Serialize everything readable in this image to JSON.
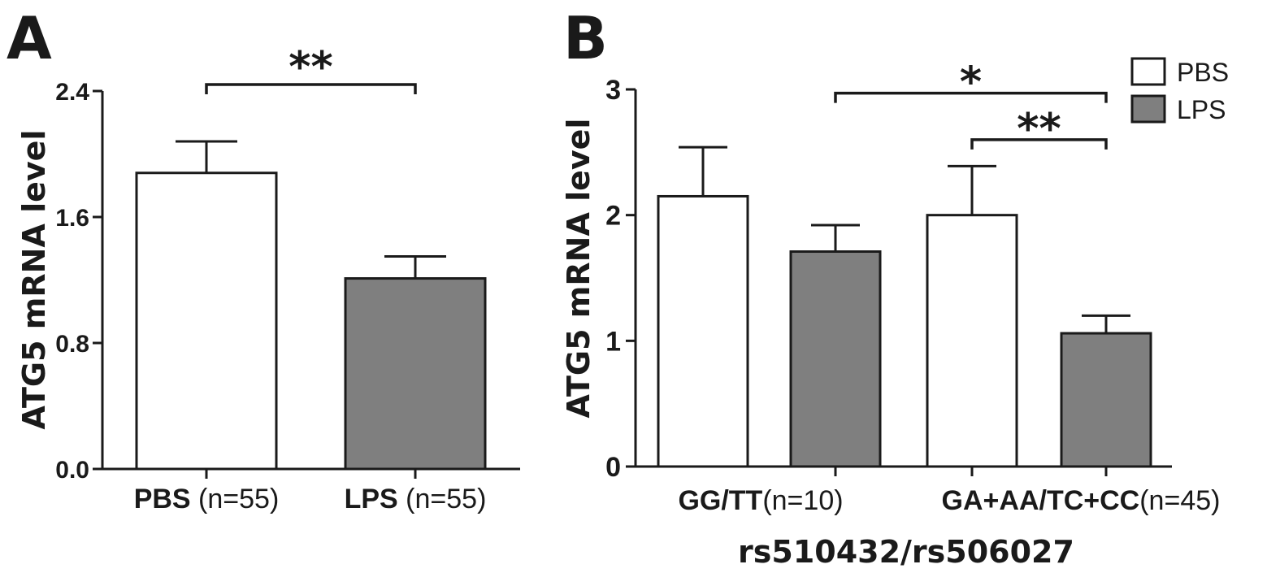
{
  "chart_data": [
    {
      "type": "bar",
      "panel_label": "A",
      "ylabel": "ATG5 mRNA level",
      "xlabel": "",
      "ylim": [
        0,
        2.4
      ],
      "yticks": [
        "0.0",
        "0.8",
        "1.6",
        "2.4"
      ],
      "ytick_values": [
        0,
        0.8,
        1.6,
        2.4
      ],
      "categories": [
        {
          "bold": "PBS",
          "normal": " (n=55)"
        },
        {
          "bold": "LPS",
          "normal": " (n=55)"
        }
      ],
      "bars": [
        {
          "group": "PBS",
          "value": 1.88,
          "error": 0.2,
          "color": "#ffffff"
        },
        {
          "group": "LPS",
          "value": 1.21,
          "error": 0.14,
          "color": "#7f7f7f"
        }
      ],
      "significance": [
        {
          "from": 0,
          "to": 1,
          "y": 2.4,
          "label": "**"
        }
      ]
    },
    {
      "type": "bar",
      "panel_label": "B",
      "ylabel": "ATG5 mRNA level",
      "xlabel": "rs510432/rs506027",
      "ylim": [
        0,
        3
      ],
      "yticks": [
        "0",
        "1",
        "2",
        "3"
      ],
      "ytick_values": [
        0,
        1,
        2,
        3
      ],
      "categories": [
        {
          "bold": "GG/TT",
          "normal": "(n=10)"
        },
        {
          "bold": "GA+AA/TC+CC",
          "normal": "(n=45)"
        }
      ],
      "series": [
        {
          "name": "PBS",
          "color": "#ffffff",
          "values": [
            2.15,
            2.0
          ],
          "errors": [
            0.39,
            0.39
          ]
        },
        {
          "name": "LPS",
          "color": "#7f7f7f",
          "values": [
            1.71,
            1.06
          ],
          "errors": [
            0.21,
            0.14
          ]
        }
      ],
      "legend": {
        "placement": "top-right",
        "items": [
          "PBS",
          "LPS"
        ]
      },
      "significance": [
        {
          "from": 1,
          "to": 3,
          "y": 2.97,
          "label": "*"
        },
        {
          "from": 2,
          "to": 3,
          "y": 2.6,
          "label": "**"
        }
      ]
    }
  ]
}
